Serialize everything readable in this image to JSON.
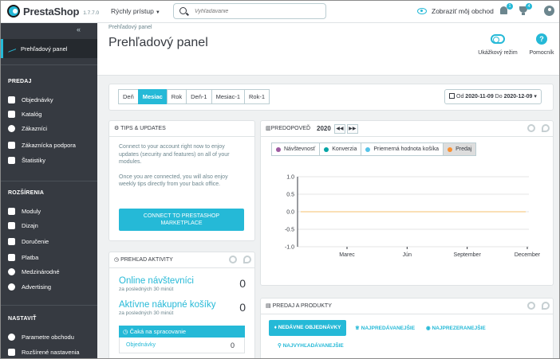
{
  "header": {
    "logo_text": "PrestaShop",
    "version": "1.7.7.0",
    "quick_access": "Rýchly prístup",
    "search_placeholder": "Vyhľadávanie",
    "view_shop": "Zobraziť môj obchod",
    "notifications_count": "1",
    "trophy_count": "4"
  },
  "sidebar": {
    "dashboard": "Prehľadový panel",
    "section_sell": "PREDAJ",
    "sell_items": [
      "Objednávky",
      "Katalóg",
      "Zákazníci",
      "Zákaznícka podpora",
      "Štatistiky"
    ],
    "section_extend": "ROZŠÍRENIA",
    "extend_items": [
      "Moduly",
      "Dizajn",
      "Doručenie",
      "Platba",
      "Medzinárodné",
      "Advertising"
    ],
    "section_configure": "NASTAVIŤ",
    "configure_items": [
      "Parametre obchodu",
      "Rozšírené nastavenia"
    ]
  },
  "page": {
    "breadcrumb": "Prehľadový panel",
    "title": "Prehľadový panel",
    "demo_mode": "Ukážkový režim",
    "help": "Pomocník"
  },
  "toolbar": {
    "periods": [
      "Deň",
      "Mesiac",
      "Rok",
      "Deň-1",
      "Mesiac-1",
      "Rok-1"
    ],
    "active_period": "Mesiac",
    "date_from_label": "Od",
    "date_from": "2020-11-09",
    "date_to_label": "Do",
    "date_to": "2020-12-09"
  },
  "tips": {
    "title": "TIPS & UPDATES",
    "text1": "Connect to your account right now to enjoy updates (security and features) on all of your modules.",
    "text2": "Once you are connected, you will also enjoy weekly tips directly from your back office.",
    "button_line1": "CONNECT TO PRESTASHOP",
    "button_line2": "MARKETPLACE"
  },
  "activity": {
    "title": "PREHĽAD AKTIVITY",
    "online_label": "Online návštevníci",
    "online_sub": "za posledných 30 minút",
    "online_value": "0",
    "carts_label": "Aktívne nákupné košíky",
    "carts_sub": "za posledných 30 minút",
    "carts_value": "0",
    "pending_label": "Čaká na spracovanie",
    "orders_label": "Objednávky",
    "orders_value": "0"
  },
  "forecast": {
    "title": "PREDOPOVEĎ",
    "year": "2020",
    "legend": [
      {
        "label": "Návštevnosť",
        "color": "#9e5ba1"
      },
      {
        "label": "Konverzia",
        "color": "#00a4a5"
      },
      {
        "label": "Priemerná hodnota košíka",
        "color": "#56c3e8"
      },
      {
        "label": "Predaj",
        "color": "#f99031"
      }
    ],
    "active_legend": "Predaj"
  },
  "chart_data": {
    "type": "line",
    "x": [
      "Marec",
      "Jún",
      "September",
      "December"
    ],
    "ylim": [
      -1.0,
      1.0
    ],
    "yticks": [
      "1.0",
      "0.5",
      "0.0",
      "-0.5",
      "-1.0"
    ],
    "series": [
      {
        "name": "Predaj",
        "values": [
          0,
          0,
          0,
          0
        ],
        "color": "#f9d59e"
      }
    ],
    "grid": true
  },
  "products": {
    "title": "PREDAJ A PRODUKTY",
    "tab_recent": "NEDÁVNE OBJEDNÁVKY",
    "tab_best": "NAJPREDÁVANEJŠIE",
    "tab_viewed": "NAJPREZERANEJŠIE",
    "tab_searched": "NAJVYHĽADÁVANEJŠIE"
  }
}
